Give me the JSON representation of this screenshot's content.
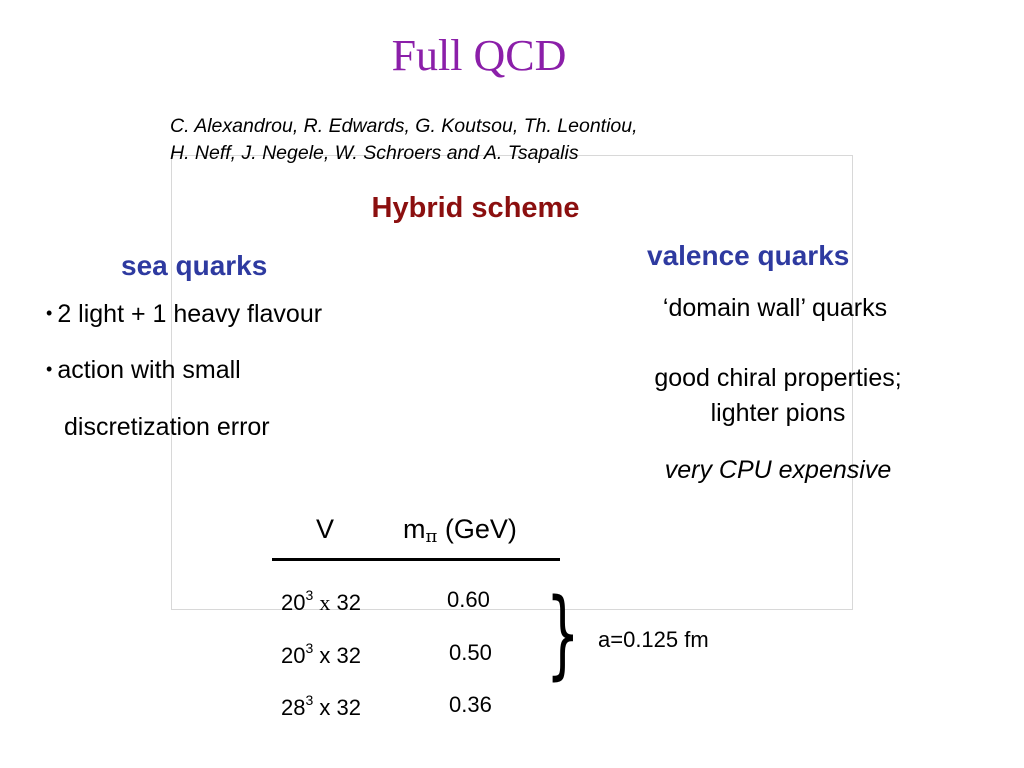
{
  "slide": {
    "title": "Full QCD",
    "authors": [
      "C. Alexandrou, R. Edwards, G. Koutsou, Th. Leontiou,",
      "H. Neff, J. Negele, W. Schroers and A. Tsapalis"
    ],
    "scheme_heading": "Hybrid scheme"
  },
  "sea": {
    "heading": "sea quarks",
    "bullet_char": "•",
    "bullets": [
      "2 light + 1 heavy flavour",
      "action with small"
    ],
    "continuation": "discretization error"
  },
  "valence": {
    "heading": "valence quarks",
    "type": "‘domain wall’ quarks",
    "properties_line1": "good chiral properties;",
    "properties_line2": "lighter pions",
    "cost": "very CPU expensive"
  },
  "table": {
    "col_v": "V",
    "col_m_base": "m",
    "col_m_sub": "π",
    "col_m_unit": "(GeV)",
    "rows": [
      {
        "base": "20",
        "exp": "3",
        "times": "x",
        "t": "32",
        "mpi": "0.60"
      },
      {
        "base": "20",
        "exp": "3",
        "times": "x",
        "t": "32",
        "mpi": "0.50"
      },
      {
        "base": "28",
        "exp": "3",
        "times": "x",
        "t": "32",
        "mpi": "0.36"
      }
    ],
    "brace": "}",
    "lattice_spacing": "a=0.125 fm"
  }
}
